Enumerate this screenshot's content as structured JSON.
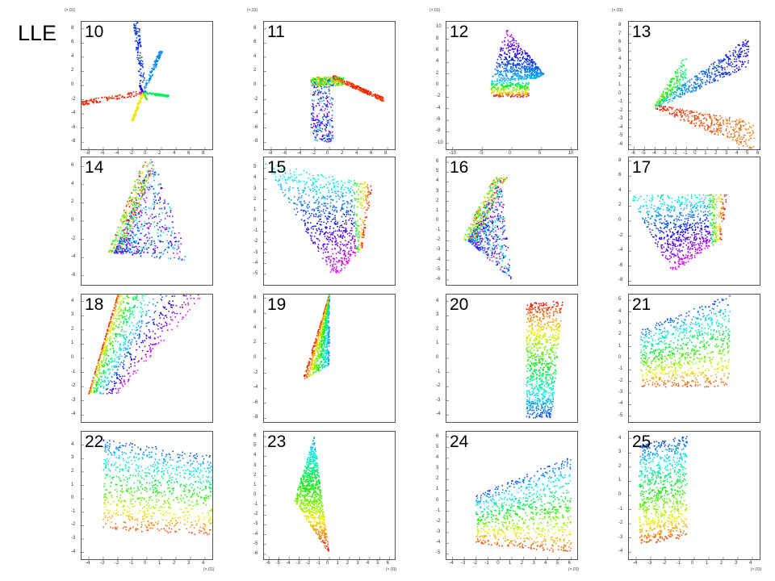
{
  "figure": {
    "title": "LLE"
  },
  "chart_data": [
    {
      "panel": "10",
      "type": "scatter",
      "xunit": "",
      "yunit": "(×.01)",
      "xticks": [
        -8,
        -6,
        -4,
        -2,
        0,
        2,
        4,
        6,
        8
      ],
      "yticks": [
        -8,
        -6,
        -4,
        -2,
        0,
        2,
        4,
        6,
        8
      ],
      "xlim": [
        -9,
        9
      ],
      "ylim": [
        -9,
        9
      ],
      "shape": {
        "kind": "star",
        "pts": [
          [
            -1.5,
            9
          ],
          [
            -1,
            0
          ],
          [
            -9,
            -2.5
          ],
          [
            -1,
            -1
          ],
          [
            -2,
            -5
          ],
          [
            0,
            -2
          ],
          [
            3,
            -1.5
          ],
          [
            2,
            5
          ]
        ],
        "order": "angle",
        "hub": [
          -0.5,
          -1
        ]
      }
    },
    {
      "panel": "11",
      "type": "scatter",
      "xunit": "",
      "yunit": "(×.01)",
      "xticks": [
        -8,
        -6,
        -4,
        -2,
        0,
        2,
        4,
        6,
        8
      ],
      "yticks": [
        -8,
        -6,
        -4,
        -2,
        0,
        2,
        4,
        6,
        8
      ],
      "xlim": [
        -9,
        9
      ],
      "ylim": [
        -9,
        9
      ],
      "shape": {
        "kind": "L",
        "parts": [
          {
            "x": [
              -2.5,
              0.5
            ],
            "y": [
              -8,
              1
            ],
            "colors": "blue-purple"
          },
          {
            "x": [
              -2.5,
              2
            ],
            "y": [
              0,
              1.2
            ],
            "colors": "cyan-yellow"
          },
          {
            "x": [
              0.5,
              7.5
            ],
            "y": [
              -2,
              1.5
            ],
            "colors": "orange-red"
          }
        ]
      }
    },
    {
      "panel": "12",
      "type": "scatter",
      "xunit": "",
      "yunit": "(×.01)",
      "xticks": [
        -10,
        -5,
        0,
        5,
        10
      ],
      "yticks": [
        -10,
        -8,
        -6,
        -4,
        -2,
        0,
        2,
        4,
        6,
        8,
        10
      ],
      "xlim": [
        -11,
        11
      ],
      "ylim": [
        -11,
        11
      ],
      "shape": {
        "kind": "fanTop",
        "base": [
          -3.5,
          3
        ],
        "tip": [
          -1,
          10
        ],
        "right": [
          5.5,
          2
        ],
        "bandY": [
          -2,
          0.5
        ]
      }
    },
    {
      "panel": "13",
      "type": "scatter",
      "xunit": "",
      "yunit": "(×.01)",
      "xticks": [
        -6,
        -5,
        -4,
        -3,
        -2,
        -1,
        0,
        1,
        2,
        3,
        4,
        5,
        6
      ],
      "yticks": [
        -6,
        -5,
        -4,
        -3,
        -2,
        -1,
        0,
        1,
        2,
        3,
        4,
        5,
        6,
        7,
        8
      ],
      "xlim": [
        -6.5,
        6
      ],
      "ylim": [
        -6.5,
        8.5
      ],
      "shape": {
        "kind": "bow",
        "hub": [
          -4,
          -1.5
        ],
        "a": [
          5,
          5
        ],
        "b": [
          5.5,
          -5
        ],
        "top": [
          -1,
          3
        ]
      }
    },
    {
      "panel": "14",
      "type": "scatter",
      "xunit": "",
      "yunit": "",
      "xticks": [],
      "yticks": [
        -6,
        -4,
        -2,
        0,
        2,
        4,
        6
      ],
      "xlim": [
        -6,
        6
      ],
      "ylim": [
        -7,
        7
      ],
      "shape": {
        "kind": "wedge",
        "apex": [
          -3,
          -3.5
        ],
        "tipL": [
          -0.5,
          4.5
        ],
        "tipR": [
          0.5,
          7
        ],
        "far": [
          4,
          -4.5
        ],
        "band": "left"
      }
    },
    {
      "panel": "15",
      "type": "scatter",
      "xunit": "",
      "yunit": "",
      "xticks": [],
      "yticks": [
        -5,
        -4,
        -3,
        -2,
        -1,
        0,
        1,
        2,
        3,
        4,
        5
      ],
      "xlim": [
        -6,
        6
      ],
      "ylim": [
        -6,
        6
      ],
      "shape": {
        "kind": "quad",
        "pts": [
          [
            -6,
            5.5
          ],
          [
            4,
            3.5
          ],
          [
            3,
            -2.5
          ],
          [
            0.5,
            -5.5
          ]
        ],
        "band": "right"
      }
    },
    {
      "panel": "16",
      "type": "scatter",
      "xunit": "",
      "yunit": "",
      "xticks": [],
      "yticks": [
        -6,
        -5,
        -4,
        -3,
        -2,
        -1,
        0,
        1,
        2,
        3,
        4,
        5,
        6
      ],
      "xlim": [
        -6,
        6
      ],
      "ylim": [
        -6.5,
        6.5
      ],
      "shape": {
        "kind": "wedge",
        "apex": [
          -4,
          -2
        ],
        "tipL": [
          -1,
          4.5
        ],
        "tipR": [
          -1,
          4.5
        ],
        "far": [
          0,
          -6
        ],
        "band": "left"
      }
    },
    {
      "panel": "17",
      "type": "scatter",
      "xunit": "",
      "yunit": "",
      "xticks": [],
      "yticks": [
        -8,
        -6,
        -4,
        -2,
        0,
        2,
        4,
        6,
        8
      ],
      "xlim": [
        -6,
        6
      ],
      "ylim": [
        -8.5,
        8.5
      ],
      "shape": {
        "kind": "quad",
        "pts": [
          [
            -6,
            3.5
          ],
          [
            3,
            3.5
          ],
          [
            2.5,
            -2.5
          ],
          [
            -2,
            -7
          ]
        ],
        "band": "right"
      }
    },
    {
      "panel": "18",
      "type": "scatter",
      "xunit": "",
      "yunit": "",
      "xticks": [],
      "yticks": [
        -4,
        -3,
        -2,
        -1,
        0,
        1,
        2,
        3,
        4
      ],
      "xlim": [
        -4.5,
        4.5
      ],
      "ylim": [
        -4.5,
        4.5
      ],
      "shape": {
        "kind": "strip",
        "a": [
          -4,
          -2.5
        ],
        "b": [
          -2,
          4.5
        ],
        "c": [
          4,
          4.5
        ],
        "d": [
          -2,
          -2.5
        ]
      }
    },
    {
      "panel": "19",
      "type": "scatter",
      "xunit": "",
      "yunit": "",
      "xticks": [],
      "yticks": [
        -8,
        -6,
        -4,
        -2,
        0,
        2,
        4,
        6,
        8
      ],
      "xlim": [
        -8.5,
        8.5
      ],
      "ylim": [
        -8.5,
        8.5
      ],
      "shape": {
        "kind": "spike",
        "base": [
          -3.5,
          -3
        ],
        "top": [
          0,
          8.5
        ],
        "right": [
          0,
          -1
        ]
      }
    },
    {
      "panel": "20",
      "type": "scatter",
      "xunit": "",
      "yunit": "",
      "xticks": [],
      "yticks": [
        -4,
        -3,
        -2,
        -1,
        0,
        1,
        2,
        3,
        4
      ],
      "xlim": [
        -4.5,
        4.5
      ],
      "ylim": [
        -4.5,
        4.5
      ],
      "shape": {
        "kind": "vband",
        "x": [
          1,
          3.5
        ],
        "y": [
          -4.2,
          4
        ]
      }
    },
    {
      "panel": "21",
      "type": "scatter",
      "xunit": "",
      "yunit": "",
      "xticks": [],
      "yticks": [
        -5,
        -4,
        -3,
        -2,
        -1,
        0,
        1,
        2,
        3,
        4,
        5
      ],
      "xlim": [
        -5.5,
        5.5
      ],
      "ylim": [
        -5.5,
        5.5
      ],
      "shape": {
        "kind": "hband",
        "x": [
          -4.5,
          3
        ],
        "yTop": [
          2.5,
          5.5
        ],
        "yBot": [
          -2.5,
          -2.5
        ]
      }
    },
    {
      "panel": "22",
      "type": "scatter",
      "xunit": "(×.01)",
      "yunit": "",
      "xticks": [
        -4,
        -3,
        -2,
        -1,
        0,
        1,
        2,
        3,
        4
      ],
      "yticks": [
        -4,
        -3,
        -2,
        -1,
        0,
        1,
        2,
        3,
        4
      ],
      "xlim": [
        -4.5,
        4.5
      ],
      "ylim": [
        -4.5,
        5
      ],
      "shape": {
        "kind": "hband",
        "x": [
          -3,
          4.5
        ],
        "yTop": [
          4.5,
          3.2
        ],
        "yBot": [
          -2.3,
          -2.7
        ]
      }
    },
    {
      "panel": "23",
      "type": "scatter",
      "xunit": "(×.01)",
      "yunit": "",
      "xticks": [
        -6,
        -5,
        -4,
        -3,
        -2,
        -1,
        0,
        1,
        2,
        3,
        4,
        5,
        6
      ],
      "yticks": [
        -6,
        -5,
        -4,
        -3,
        -2,
        -1,
        0,
        1,
        2,
        3,
        4,
        5,
        6
      ],
      "xlim": [
        -6.5,
        6.5
      ],
      "ylim": [
        -6.5,
        6.5
      ],
      "shape": {
        "kind": "tri",
        "top": [
          -1.5,
          6
        ],
        "left": [
          -3.5,
          -0.5
        ],
        "bottom": [
          0,
          -6
        ]
      }
    },
    {
      "panel": "24",
      "type": "scatter",
      "xunit": "(×.01)",
      "yunit": "",
      "xticks": [
        -4,
        -3,
        -2,
        -1,
        0,
        1,
        2,
        3,
        4,
        5,
        6
      ],
      "yticks": [
        -5,
        -4,
        -3,
        -2,
        -1,
        0,
        1,
        2,
        3,
        4,
        5,
        6
      ],
      "xlim": [
        -4.5,
        6.5
      ],
      "ylim": [
        -5.5,
        6.5
      ],
      "shape": {
        "kind": "hband",
        "x": [
          -2,
          6
        ],
        "yTop": [
          0.5,
          4.2
        ],
        "yBot": [
          -4,
          -5
        ]
      }
    },
    {
      "panel": "25",
      "type": "scatter",
      "xunit": "(×.01)",
      "yunit": "",
      "xticks": [
        -4,
        -3,
        -2,
        -1,
        0,
        1,
        2,
        3,
        4
      ],
      "yticks": [
        -4,
        -3,
        -2,
        -1,
        0,
        1,
        2,
        3,
        4
      ],
      "xlim": [
        -4.5,
        4.5
      ],
      "ylim": [
        -4.5,
        4.5
      ],
      "shape": {
        "kind": "hband",
        "x": [
          -3.8,
          -0.5
        ],
        "yTop": [
          3.6,
          4.2
        ],
        "yBot": [
          -3.5,
          -3
        ]
      }
    }
  ]
}
